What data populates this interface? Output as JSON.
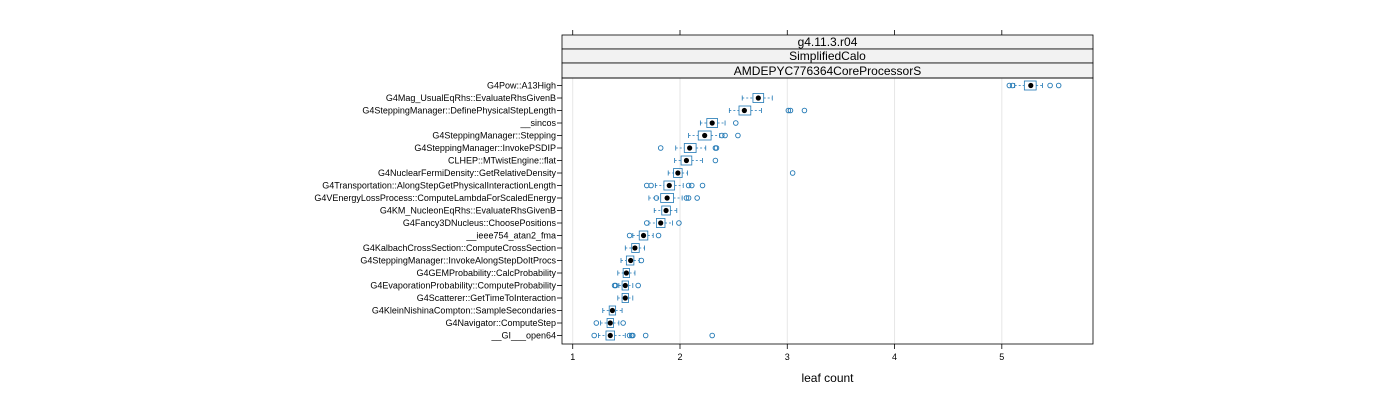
{
  "chart_data": {
    "type": "box",
    "panel_strips": [
      "g4.11.3.r04",
      "SimplifiedCalo",
      "AMDEPYC776364CoreProcessorS"
    ],
    "xlabel": "leaf count",
    "xlim": [
      0.9,
      5.85
    ],
    "xticks": [
      1,
      2,
      3,
      4,
      5
    ],
    "xtick_labels": [
      "1",
      "2",
      "3",
      "4",
      "5"
    ],
    "box_color": "#1f77b4",
    "median_color": "#000000",
    "grid": true,
    "categories": [
      "G4Pow::A13High",
      "G4Mag_UsualEqRhs::EvaluateRhsGivenB",
      "G4SteppingManager::DefinePhysicalStepLength",
      "__sincos",
      "G4SteppingManager::Stepping",
      "G4SteppingManager::InvokePSDIP",
      "CLHEP::MTwistEngine::flat",
      "G4NuclearFermiDensity::GetRelativeDensity",
      "G4Transportation::AlongStepGetPhysicalInteractionLength",
      "G4VEnergyLossProcess::ComputeLambdaForScaledEnergy",
      "G4KM_NucleonEqRhs::EvaluateRhsGivenB",
      "G4Fancy3DNucleus::ChoosePositions",
      "__ieee754_atan2_fma",
      "G4KalbachCrossSection::ComputeCrossSection",
      "G4SteppingManager::InvokeAlongStepDoItProcs",
      "G4GEMProbability::CalcProbability",
      "G4EvaporationProbability::ComputeProbability",
      "G4Scatterer::GetTimeToInteraction",
      "G4KleinNishinaCompton::SampleSecondaries",
      "G4Navigator::ComputeStep",
      "__GI___open64"
    ],
    "boxes": [
      {
        "whisker_low": 5.12,
        "q1": 5.21,
        "median": 5.27,
        "q3": 5.32,
        "whisker_high": 5.38,
        "outliers": [
          5.07,
          5.1,
          5.45,
          5.53
        ]
      },
      {
        "whisker_low": 2.58,
        "q1": 2.68,
        "median": 2.73,
        "q3": 2.78,
        "whisker_high": 2.86,
        "outliers": []
      },
      {
        "whisker_low": 2.46,
        "q1": 2.55,
        "median": 2.6,
        "q3": 2.66,
        "whisker_high": 2.76,
        "outliers": [
          3.01,
          3.03,
          3.16
        ]
      },
      {
        "whisker_low": 2.19,
        "q1": 2.25,
        "median": 2.3,
        "q3": 2.35,
        "whisker_high": 2.42,
        "outliers": [
          2.52
        ]
      },
      {
        "whisker_low": 2.08,
        "q1": 2.17,
        "median": 2.23,
        "q3": 2.29,
        "whisker_high": 2.37,
        "outliers": [
          2.39,
          2.42,
          2.54
        ]
      },
      {
        "whisker_low": 1.96,
        "q1": 2.04,
        "median": 2.09,
        "q3": 2.15,
        "whisker_high": 2.24,
        "outliers": [
          1.82,
          2.33,
          2.34
        ]
      },
      {
        "whisker_low": 1.95,
        "q1": 2.01,
        "median": 2.06,
        "q3": 2.11,
        "whisker_high": 2.21,
        "outliers": [
          2.33
        ]
      },
      {
        "whisker_low": 1.89,
        "q1": 1.94,
        "median": 1.98,
        "q3": 2.02,
        "whisker_high": 2.07,
        "outliers": [
          3.05
        ]
      },
      {
        "whisker_low": 1.77,
        "q1": 1.85,
        "median": 1.9,
        "q3": 1.95,
        "whisker_high": 2.03,
        "outliers": [
          1.69,
          1.73,
          2.08,
          2.11,
          2.21
        ]
      },
      {
        "whisker_low": 1.71,
        "q1": 1.82,
        "median": 1.88,
        "q3": 1.94,
        "whisker_high": 2.02,
        "outliers": [
          1.78,
          2.06,
          2.08,
          2.16
        ]
      },
      {
        "whisker_low": 1.76,
        "q1": 1.83,
        "median": 1.87,
        "q3": 1.91,
        "whisker_high": 1.97,
        "outliers": []
      },
      {
        "whisker_low": 1.71,
        "q1": 1.78,
        "median": 1.82,
        "q3": 1.86,
        "whisker_high": 1.93,
        "outliers": [
          1.69,
          1.99
        ]
      },
      {
        "whisker_low": 1.56,
        "q1": 1.62,
        "median": 1.66,
        "q3": 1.7,
        "whisker_high": 1.75,
        "outliers": [
          1.53,
          1.8
        ]
      },
      {
        "whisker_low": 1.49,
        "q1": 1.55,
        "median": 1.58,
        "q3": 1.62,
        "whisker_high": 1.67,
        "outliers": []
      },
      {
        "whisker_low": 1.45,
        "q1": 1.5,
        "median": 1.54,
        "q3": 1.57,
        "whisker_high": 1.62,
        "outliers": [
          1.64
        ]
      },
      {
        "whisker_low": 1.42,
        "q1": 1.47,
        "median": 1.5,
        "q3": 1.53,
        "whisker_high": 1.58,
        "outliers": []
      },
      {
        "whisker_low": 1.43,
        "q1": 1.46,
        "median": 1.49,
        "q3": 1.52,
        "whisker_high": 1.56,
        "outliers": [
          1.39,
          1.4,
          1.61
        ]
      },
      {
        "whisker_low": 1.42,
        "q1": 1.46,
        "median": 1.49,
        "q3": 1.52,
        "whisker_high": 1.56,
        "outliers": []
      },
      {
        "whisker_low": 1.28,
        "q1": 1.34,
        "median": 1.37,
        "q3": 1.4,
        "whisker_high": 1.46,
        "outliers": []
      },
      {
        "whisker_low": 1.26,
        "q1": 1.32,
        "median": 1.35,
        "q3": 1.38,
        "whisker_high": 1.43,
        "outliers": [
          1.22,
          1.47
        ]
      },
      {
        "whisker_low": 1.24,
        "q1": 1.31,
        "median": 1.35,
        "q3": 1.39,
        "whisker_high": 1.49,
        "outliers": [
          1.2,
          1.53,
          1.55,
          1.56,
          1.68,
          2.3
        ]
      }
    ]
  }
}
